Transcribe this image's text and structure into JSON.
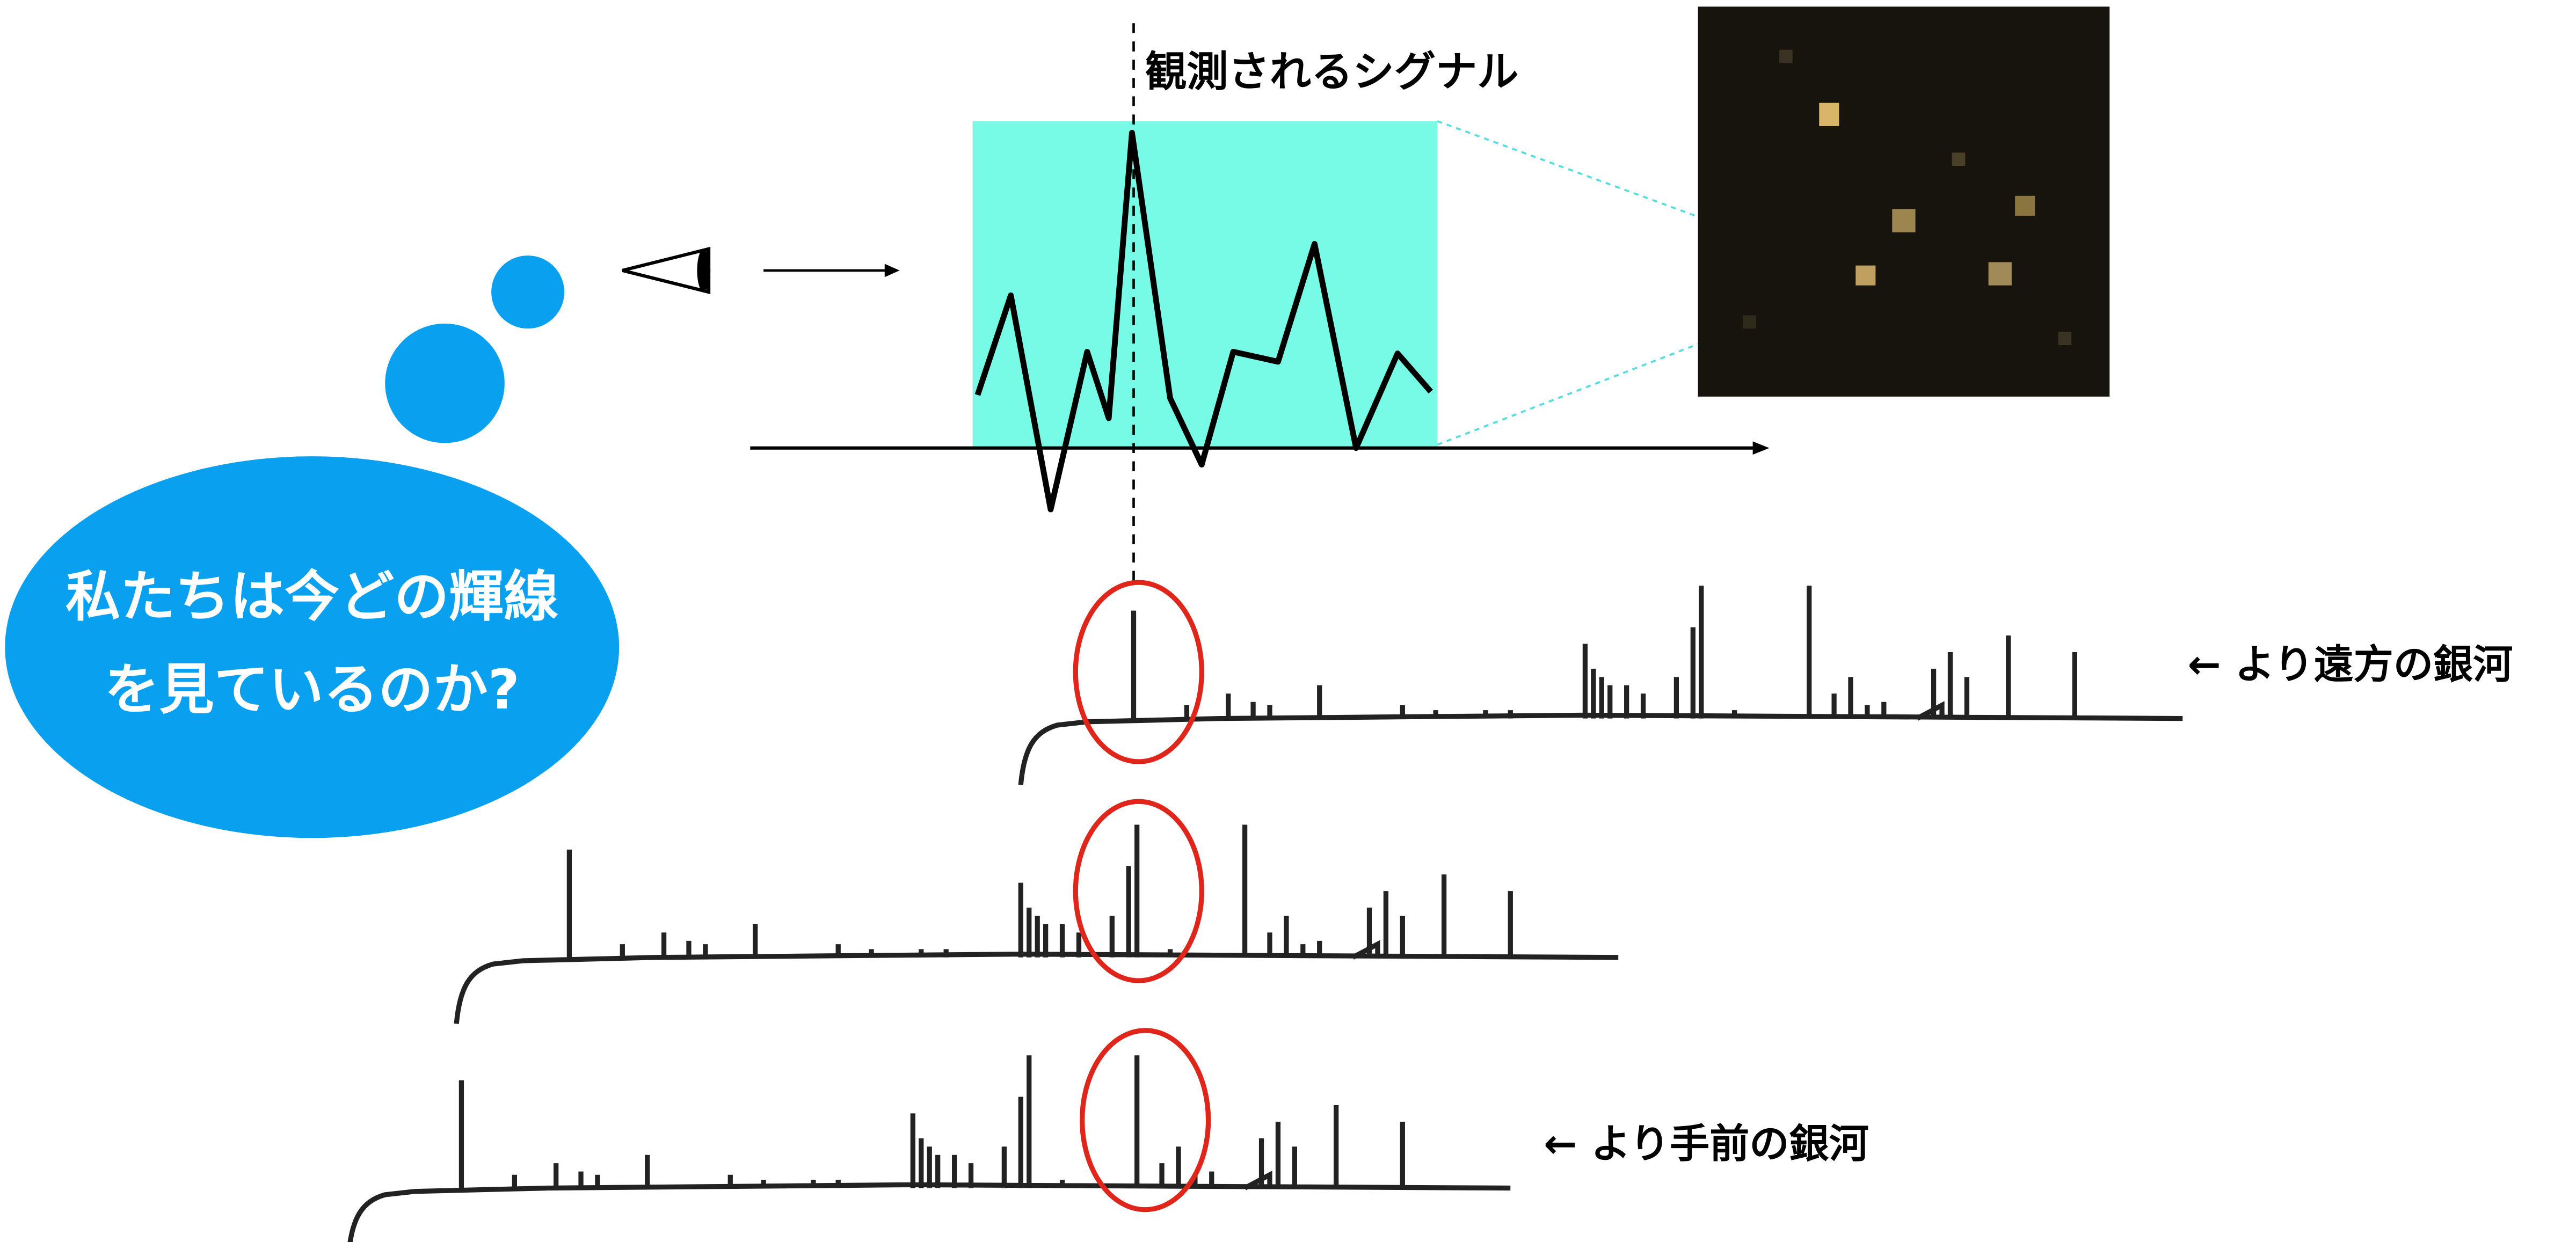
{
  "signal_label": "観測されるシグナル",
  "question": {
    "line1": "私たちは今どの輝線",
    "line2": "を見ているのか?"
  },
  "far_galaxy_label": "← より遠方の銀河",
  "near_galaxy_label": "← より手前の銀河"
}
